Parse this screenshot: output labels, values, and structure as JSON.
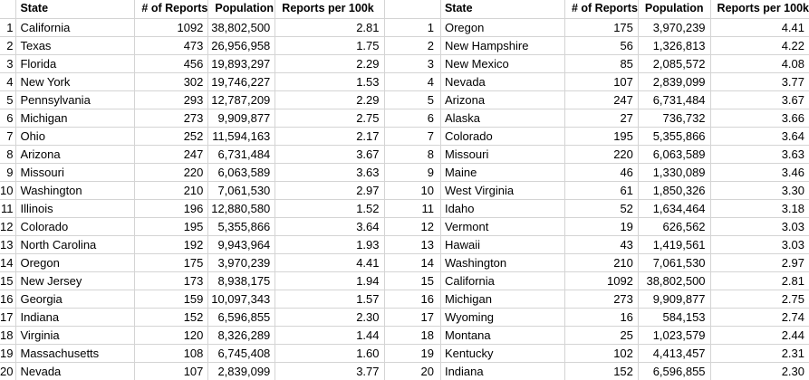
{
  "colors": {
    "gridline": "#d4d4d4",
    "text": "#000000",
    "background": "#ffffff"
  },
  "columns": {
    "rank": "",
    "state": "State",
    "reports": "# of Reports",
    "population": "Population",
    "per_100k": "Reports per 100k"
  },
  "left_table": {
    "sorted_by": "# of Reports (descending)",
    "rows": [
      {
        "rank": "1",
        "state": "California",
        "reports": "1092",
        "population": "38,802,500",
        "per_100k": "2.81"
      },
      {
        "rank": "2",
        "state": "Texas",
        "reports": "473",
        "population": "26,956,958",
        "per_100k": "1.75"
      },
      {
        "rank": "3",
        "state": "Florida",
        "reports": "456",
        "population": "19,893,297",
        "per_100k": "2.29"
      },
      {
        "rank": "4",
        "state": "New York",
        "reports": "302",
        "population": "19,746,227",
        "per_100k": "1.53"
      },
      {
        "rank": "5",
        "state": "Pennsylvania",
        "reports": "293",
        "population": "12,787,209",
        "per_100k": "2.29"
      },
      {
        "rank": "6",
        "state": "Michigan",
        "reports": "273",
        "population": "9,909,877",
        "per_100k": "2.75"
      },
      {
        "rank": "7",
        "state": "Ohio",
        "reports": "252",
        "population": "11,594,163",
        "per_100k": "2.17"
      },
      {
        "rank": "8",
        "state": "Arizona",
        "reports": "247",
        "population": "6,731,484",
        "per_100k": "3.67"
      },
      {
        "rank": "9",
        "state": "Missouri",
        "reports": "220",
        "population": "6,063,589",
        "per_100k": "3.63"
      },
      {
        "rank": "10",
        "state": "Washington",
        "reports": "210",
        "population": "7,061,530",
        "per_100k": "2.97"
      },
      {
        "rank": "11",
        "state": "Illinois",
        "reports": "196",
        "population": "12,880,580",
        "per_100k": "1.52"
      },
      {
        "rank": "12",
        "state": "Colorado",
        "reports": "195",
        "population": "5,355,866",
        "per_100k": "3.64"
      },
      {
        "rank": "13",
        "state": "North Carolina",
        "reports": "192",
        "population": "9,943,964",
        "per_100k": "1.93"
      },
      {
        "rank": "14",
        "state": "Oregon",
        "reports": "175",
        "population": "3,970,239",
        "per_100k": "4.41"
      },
      {
        "rank": "15",
        "state": "New Jersey",
        "reports": "173",
        "population": "8,938,175",
        "per_100k": "1.94"
      },
      {
        "rank": "16",
        "state": "Georgia",
        "reports": "159",
        "population": "10,097,343",
        "per_100k": "1.57"
      },
      {
        "rank": "17",
        "state": "Indiana",
        "reports": "152",
        "population": "6,596,855",
        "per_100k": "2.30"
      },
      {
        "rank": "18",
        "state": "Virginia",
        "reports": "120",
        "population": "8,326,289",
        "per_100k": "1.44"
      },
      {
        "rank": "19",
        "state": "Massachusetts",
        "reports": "108",
        "population": "6,745,408",
        "per_100k": "1.60"
      },
      {
        "rank": "20",
        "state": "Nevada",
        "reports": "107",
        "population": "2,839,099",
        "per_100k": "3.77"
      }
    ]
  },
  "right_table": {
    "sorted_by": "Reports per 100k (descending)",
    "rows": [
      {
        "rank": "1",
        "state": "Oregon",
        "reports": "175",
        "population": "3,970,239",
        "per_100k": "4.41"
      },
      {
        "rank": "2",
        "state": "New Hampshire",
        "reports": "56",
        "population": "1,326,813",
        "per_100k": "4.22"
      },
      {
        "rank": "3",
        "state": "New Mexico",
        "reports": "85",
        "population": "2,085,572",
        "per_100k": "4.08"
      },
      {
        "rank": "4",
        "state": "Nevada",
        "reports": "107",
        "population": "2,839,099",
        "per_100k": "3.77"
      },
      {
        "rank": "5",
        "state": "Arizona",
        "reports": "247",
        "population": "6,731,484",
        "per_100k": "3.67"
      },
      {
        "rank": "6",
        "state": "Alaska",
        "reports": "27",
        "population": "736,732",
        "per_100k": "3.66"
      },
      {
        "rank": "7",
        "state": "Colorado",
        "reports": "195",
        "population": "5,355,866",
        "per_100k": "3.64"
      },
      {
        "rank": "8",
        "state": "Missouri",
        "reports": "220",
        "population": "6,063,589",
        "per_100k": "3.63"
      },
      {
        "rank": "9",
        "state": "Maine",
        "reports": "46",
        "population": "1,330,089",
        "per_100k": "3.46"
      },
      {
        "rank": "10",
        "state": "West Virginia",
        "reports": "61",
        "population": "1,850,326",
        "per_100k": "3.30"
      },
      {
        "rank": "11",
        "state": "Idaho",
        "reports": "52",
        "population": "1,634,464",
        "per_100k": "3.18"
      },
      {
        "rank": "12",
        "state": "Vermont",
        "reports": "19",
        "population": "626,562",
        "per_100k": "3.03"
      },
      {
        "rank": "13",
        "state": "Hawaii",
        "reports": "43",
        "population": "1,419,561",
        "per_100k": "3.03"
      },
      {
        "rank": "14",
        "state": "Washington",
        "reports": "210",
        "population": "7,061,530",
        "per_100k": "2.97"
      },
      {
        "rank": "15",
        "state": "California",
        "reports": "1092",
        "population": "38,802,500",
        "per_100k": "2.81"
      },
      {
        "rank": "16",
        "state": "Michigan",
        "reports": "273",
        "population": "9,909,877",
        "per_100k": "2.75"
      },
      {
        "rank": "17",
        "state": "Wyoming",
        "reports": "16",
        "population": "584,153",
        "per_100k": "2.74"
      },
      {
        "rank": "18",
        "state": "Montana",
        "reports": "25",
        "population": "1,023,579",
        "per_100k": "2.44"
      },
      {
        "rank": "19",
        "state": "Kentucky",
        "reports": "102",
        "population": "4,413,457",
        "per_100k": "2.31"
      },
      {
        "rank": "20",
        "state": "Indiana",
        "reports": "152",
        "population": "6,596,855",
        "per_100k": "2.30"
      }
    ]
  }
}
